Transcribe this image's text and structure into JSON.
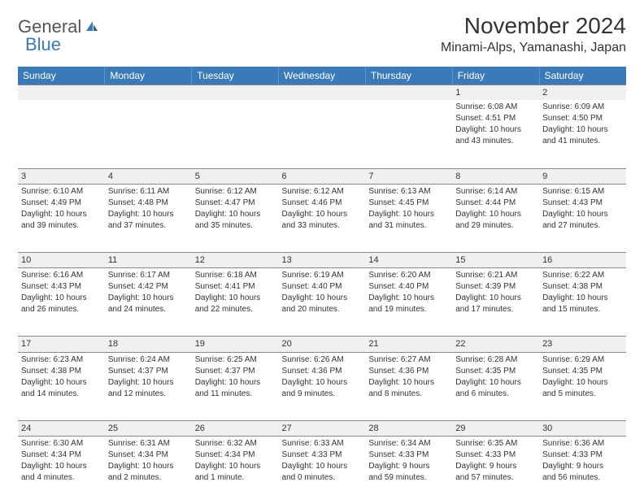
{
  "logo": {
    "text1": "General",
    "text2": "Blue"
  },
  "title": "November 2024",
  "location": "Minami-Alps, Yamanashi, Japan",
  "weekdays": [
    "Sunday",
    "Monday",
    "Tuesday",
    "Wednesday",
    "Thursday",
    "Friday",
    "Saturday"
  ],
  "colors": {
    "header_bg": "#3a7ab8",
    "header_text": "#ffffff",
    "daynum_bg": "#f0f0f0",
    "border": "#888888",
    "text": "#333333",
    "logo_blue": "#3a7ab8"
  },
  "weeks": [
    [
      null,
      null,
      null,
      null,
      null,
      {
        "n": "1",
        "sr": "Sunrise: 6:08 AM",
        "ss": "Sunset: 4:51 PM",
        "d1": "Daylight: 10 hours",
        "d2": "and 43 minutes."
      },
      {
        "n": "2",
        "sr": "Sunrise: 6:09 AM",
        "ss": "Sunset: 4:50 PM",
        "d1": "Daylight: 10 hours",
        "d2": "and 41 minutes."
      }
    ],
    [
      {
        "n": "3",
        "sr": "Sunrise: 6:10 AM",
        "ss": "Sunset: 4:49 PM",
        "d1": "Daylight: 10 hours",
        "d2": "and 39 minutes."
      },
      {
        "n": "4",
        "sr": "Sunrise: 6:11 AM",
        "ss": "Sunset: 4:48 PM",
        "d1": "Daylight: 10 hours",
        "d2": "and 37 minutes."
      },
      {
        "n": "5",
        "sr": "Sunrise: 6:12 AM",
        "ss": "Sunset: 4:47 PM",
        "d1": "Daylight: 10 hours",
        "d2": "and 35 minutes."
      },
      {
        "n": "6",
        "sr": "Sunrise: 6:12 AM",
        "ss": "Sunset: 4:46 PM",
        "d1": "Daylight: 10 hours",
        "d2": "and 33 minutes."
      },
      {
        "n": "7",
        "sr": "Sunrise: 6:13 AM",
        "ss": "Sunset: 4:45 PM",
        "d1": "Daylight: 10 hours",
        "d2": "and 31 minutes."
      },
      {
        "n": "8",
        "sr": "Sunrise: 6:14 AM",
        "ss": "Sunset: 4:44 PM",
        "d1": "Daylight: 10 hours",
        "d2": "and 29 minutes."
      },
      {
        "n": "9",
        "sr": "Sunrise: 6:15 AM",
        "ss": "Sunset: 4:43 PM",
        "d1": "Daylight: 10 hours",
        "d2": "and 27 minutes."
      }
    ],
    [
      {
        "n": "10",
        "sr": "Sunrise: 6:16 AM",
        "ss": "Sunset: 4:43 PM",
        "d1": "Daylight: 10 hours",
        "d2": "and 26 minutes."
      },
      {
        "n": "11",
        "sr": "Sunrise: 6:17 AM",
        "ss": "Sunset: 4:42 PM",
        "d1": "Daylight: 10 hours",
        "d2": "and 24 minutes."
      },
      {
        "n": "12",
        "sr": "Sunrise: 6:18 AM",
        "ss": "Sunset: 4:41 PM",
        "d1": "Daylight: 10 hours",
        "d2": "and 22 minutes."
      },
      {
        "n": "13",
        "sr": "Sunrise: 6:19 AM",
        "ss": "Sunset: 4:40 PM",
        "d1": "Daylight: 10 hours",
        "d2": "and 20 minutes."
      },
      {
        "n": "14",
        "sr": "Sunrise: 6:20 AM",
        "ss": "Sunset: 4:40 PM",
        "d1": "Daylight: 10 hours",
        "d2": "and 19 minutes."
      },
      {
        "n": "15",
        "sr": "Sunrise: 6:21 AM",
        "ss": "Sunset: 4:39 PM",
        "d1": "Daylight: 10 hours",
        "d2": "and 17 minutes."
      },
      {
        "n": "16",
        "sr": "Sunrise: 6:22 AM",
        "ss": "Sunset: 4:38 PM",
        "d1": "Daylight: 10 hours",
        "d2": "and 15 minutes."
      }
    ],
    [
      {
        "n": "17",
        "sr": "Sunrise: 6:23 AM",
        "ss": "Sunset: 4:38 PM",
        "d1": "Daylight: 10 hours",
        "d2": "and 14 minutes."
      },
      {
        "n": "18",
        "sr": "Sunrise: 6:24 AM",
        "ss": "Sunset: 4:37 PM",
        "d1": "Daylight: 10 hours",
        "d2": "and 12 minutes."
      },
      {
        "n": "19",
        "sr": "Sunrise: 6:25 AM",
        "ss": "Sunset: 4:37 PM",
        "d1": "Daylight: 10 hours",
        "d2": "and 11 minutes."
      },
      {
        "n": "20",
        "sr": "Sunrise: 6:26 AM",
        "ss": "Sunset: 4:36 PM",
        "d1": "Daylight: 10 hours",
        "d2": "and 9 minutes."
      },
      {
        "n": "21",
        "sr": "Sunrise: 6:27 AM",
        "ss": "Sunset: 4:36 PM",
        "d1": "Daylight: 10 hours",
        "d2": "and 8 minutes."
      },
      {
        "n": "22",
        "sr": "Sunrise: 6:28 AM",
        "ss": "Sunset: 4:35 PM",
        "d1": "Daylight: 10 hours",
        "d2": "and 6 minutes."
      },
      {
        "n": "23",
        "sr": "Sunrise: 6:29 AM",
        "ss": "Sunset: 4:35 PM",
        "d1": "Daylight: 10 hours",
        "d2": "and 5 minutes."
      }
    ],
    [
      {
        "n": "24",
        "sr": "Sunrise: 6:30 AM",
        "ss": "Sunset: 4:34 PM",
        "d1": "Daylight: 10 hours",
        "d2": "and 4 minutes."
      },
      {
        "n": "25",
        "sr": "Sunrise: 6:31 AM",
        "ss": "Sunset: 4:34 PM",
        "d1": "Daylight: 10 hours",
        "d2": "and 2 minutes."
      },
      {
        "n": "26",
        "sr": "Sunrise: 6:32 AM",
        "ss": "Sunset: 4:34 PM",
        "d1": "Daylight: 10 hours",
        "d2": "and 1 minute."
      },
      {
        "n": "27",
        "sr": "Sunrise: 6:33 AM",
        "ss": "Sunset: 4:33 PM",
        "d1": "Daylight: 10 hours",
        "d2": "and 0 minutes."
      },
      {
        "n": "28",
        "sr": "Sunrise: 6:34 AM",
        "ss": "Sunset: 4:33 PM",
        "d1": "Daylight: 9 hours",
        "d2": "and 59 minutes."
      },
      {
        "n": "29",
        "sr": "Sunrise: 6:35 AM",
        "ss": "Sunset: 4:33 PM",
        "d1": "Daylight: 9 hours",
        "d2": "and 57 minutes."
      },
      {
        "n": "30",
        "sr": "Sunrise: 6:36 AM",
        "ss": "Sunset: 4:33 PM",
        "d1": "Daylight: 9 hours",
        "d2": "and 56 minutes."
      }
    ]
  ]
}
